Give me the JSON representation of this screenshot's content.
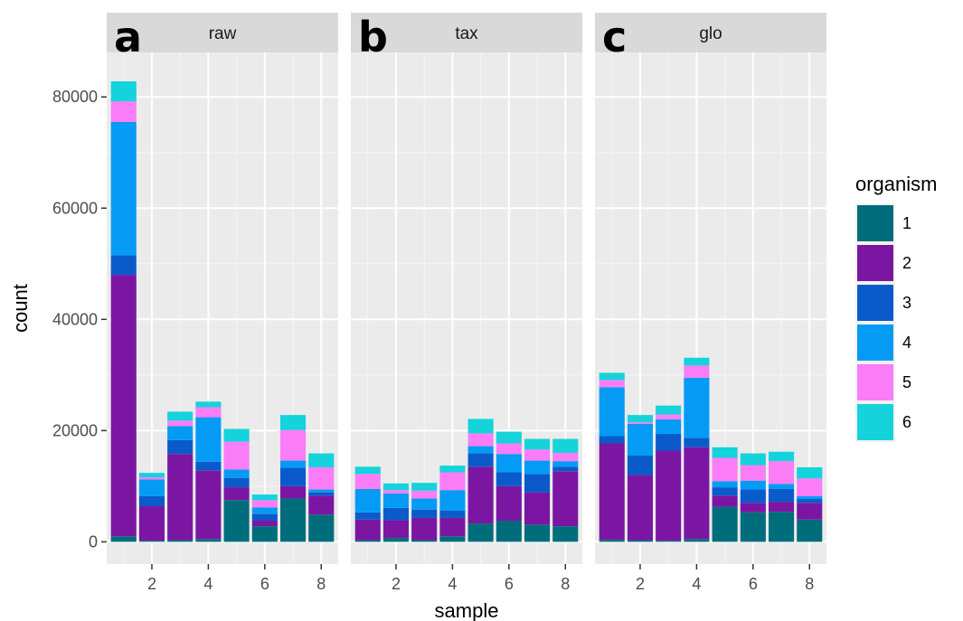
{
  "chart_data": {
    "type": "bar",
    "stacked": true,
    "facets": [
      {
        "label": "raw",
        "letter": "a",
        "samples": [
          1,
          2,
          3,
          4,
          5,
          6,
          7,
          8
        ],
        "series": [
          {
            "name": "1",
            "values": [
              1000,
              200,
              300,
              500,
              7500,
              2800,
              7800,
              4900
            ]
          },
          {
            "name": "2",
            "values": [
              47000,
              6200,
              15500,
              12300,
              2300,
              1000,
              2200,
              3400
            ]
          },
          {
            "name": "3",
            "values": [
              3500,
              1800,
              2500,
              1600,
              1700,
              1200,
              3300,
              600
            ]
          },
          {
            "name": "4",
            "values": [
              24000,
              3000,
              2500,
              8000,
              1500,
              1200,
              1300,
              500
            ]
          },
          {
            "name": "5",
            "values": [
              3700,
              400,
              1000,
              1800,
              5000,
              1300,
              5500,
              4000
            ]
          },
          {
            "name": "6",
            "values": [
              3600,
              800,
              1600,
              1000,
              2300,
              1000,
              2700,
              2500
            ]
          }
        ]
      },
      {
        "label": "tax",
        "letter": "b",
        "samples": [
          1,
          2,
          3,
          4,
          5,
          6,
          7,
          8
        ],
        "series": [
          {
            "name": "1",
            "values": [
              300,
              700,
              300,
              1000,
              3300,
              3800,
              3100,
              2800
            ]
          },
          {
            "name": "2",
            "values": [
              3700,
              3200,
              4000,
              3300,
              10200,
              6200,
              5800,
              9900
            ]
          },
          {
            "name": "3",
            "values": [
              1300,
              2200,
              1500,
              1300,
              2400,
              2500,
              3300,
              800
            ]
          },
          {
            "name": "4",
            "values": [
              4200,
              2600,
              2000,
              3700,
              1300,
              3300,
              2400,
              1000
            ]
          },
          {
            "name": "5",
            "values": [
              2700,
              600,
              1400,
              3200,
              2300,
              1900,
              2000,
              1500
            ]
          },
          {
            "name": "6",
            "values": [
              1300,
              1200,
              1400,
              1200,
              2600,
              2100,
              1900,
              2500
            ]
          }
        ]
      },
      {
        "label": "glo",
        "letter": "c",
        "samples": [
          1,
          2,
          3,
          4,
          5,
          6,
          7,
          8
        ],
        "series": [
          {
            "name": "1",
            "values": [
              400,
              300,
              200,
              500,
              6300,
              5300,
              5400,
              4000
            ]
          },
          {
            "name": "2",
            "values": [
              17300,
              11700,
              16200,
              16500,
              2000,
              1700,
              1800,
              3000
            ]
          },
          {
            "name": "3",
            "values": [
              1300,
              3500,
              3000,
              1700,
              1500,
              2400,
              2300,
              700
            ]
          },
          {
            "name": "4",
            "values": [
              8800,
              5700,
              2600,
              10800,
              1100,
              1600,
              900,
              500
            ]
          },
          {
            "name": "5",
            "values": [
              1300,
              300,
              900,
              2200,
              4200,
              2800,
              4100,
              3200
            ]
          },
          {
            "name": "6",
            "values": [
              1300,
              1300,
              1600,
              1400,
              1900,
              2100,
              1700,
              2000
            ]
          }
        ]
      }
    ],
    "colors": {
      "1": "#006d7c",
      "2": "#7b16a3",
      "3": "#0a5bc9",
      "4": "#059bf5",
      "5": "#fa7df7",
      "6": "#14d3db"
    },
    "xlabel": "sample",
    "ylabel": "count",
    "ylim": [
      -4000,
      88000
    ],
    "yticks": [
      0,
      20000,
      40000,
      60000,
      80000
    ],
    "xticks": [
      2,
      4,
      6,
      8
    ],
    "xlim": [
      0.4,
      8.6
    ],
    "legend": {
      "title": "organism",
      "position": "right",
      "entries": [
        "1",
        "2",
        "3",
        "4",
        "5",
        "6"
      ]
    },
    "grid": true
  }
}
